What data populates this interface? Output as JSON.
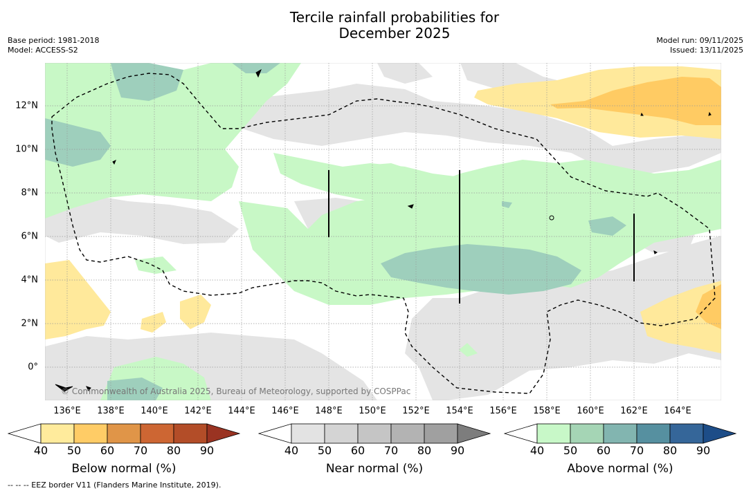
{
  "header": {
    "title_line1": "Tercile rainfall probabilities for",
    "title_line2": "December 2025",
    "base_period": "Base period: 1981-2018",
    "model": "Model: ACCESS-S2",
    "model_run": "Model run: 09/11/2025",
    "issued": "Issued: 13/11/2025"
  },
  "map": {
    "x_ticks": [
      "136°E",
      "138°E",
      "140°E",
      "142°E",
      "144°E",
      "146°E",
      "148°E",
      "150°E",
      "152°E",
      "154°E",
      "156°E",
      "158°E",
      "160°E",
      "162°E",
      "164°E"
    ],
    "y_ticks": [
      "12°N",
      "10°N",
      "8°N",
      "6°N",
      "4°N",
      "2°N",
      "0°"
    ],
    "copyright": "© Commonwealth of Australia 2025, Bureau of Meteorology, supported by COSPPac",
    "colors": {
      "near40": "#e4e4e4",
      "above40": "#c8f8c6",
      "above50": "#9ecfbc",
      "below40": "#ffe99b",
      "below50": "#ffcb63",
      "above60": "#7db5ac",
      "land": "#000000"
    }
  },
  "colorbars": {
    "below": {
      "title": "Below normal (%)",
      "ticks": [
        "40",
        "50",
        "60",
        "70",
        "80",
        "90"
      ],
      "colors": [
        "#ffffff",
        "#ffeb9c",
        "#ffcc66",
        "#e09548",
        "#cd6633",
        "#b34d28",
        "#9a3322"
      ]
    },
    "near": {
      "title": "Near normal (%)",
      "ticks": [
        "40",
        "50",
        "60",
        "70",
        "80",
        "90"
      ],
      "colors": [
        "#ffffff",
        "#e3e3e3",
        "#d4d4d4",
        "#c5c5c5",
        "#b3b3b3",
        "#a0a0a0",
        "#7d7d7d"
      ]
    },
    "above": {
      "title": "Above normal (%)",
      "ticks": [
        "40",
        "50",
        "60",
        "70",
        "80",
        "90"
      ],
      "colors": [
        "#ffffff",
        "#c8f8c8",
        "#a5d5b5",
        "#82b5b0",
        "#5690a0",
        "#356699",
        "#1d4d88"
      ]
    }
  },
  "footnote": "-- -- -- EEZ border V11 (Flanders Marine Institute, 2019)."
}
